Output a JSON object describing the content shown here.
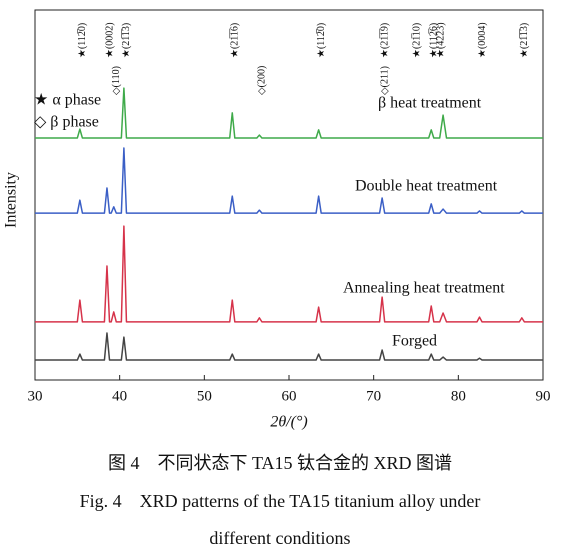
{
  "chart_data": {
    "type": "line",
    "y_label": "Intensity",
    "x_label": "2θ/(°)",
    "legend": [
      "★ α phase",
      "◇ β phase"
    ],
    "caption_cn": "图 4　不同状态下 TA15 钛合金的 XRD 图谱",
    "caption_en": [
      "Fig. 4　XRD patterns of the TA15 titanium alloy under",
      "different conditions"
    ],
    "xlim": [
      30,
      90
    ],
    "xticks": [
      30,
      40,
      50,
      60,
      70,
      80,
      90
    ],
    "ylim": [
      0,
      100
    ],
    "peak_labels": [
      {
        "text": "★(112̅0)",
        "x": 35.3
      },
      {
        "text": "★(0002)",
        "x": 38.5
      },
      {
        "text": "◇(110)",
        "x": 39.3
      },
      {
        "text": "★(21̅1̅3)",
        "x": 40.5
      },
      {
        "text": "★(21̅1̅6)",
        "x": 53.3
      },
      {
        "text": "◇(200)",
        "x": 56.5
      },
      {
        "text": "★(112̅0)",
        "x": 63.5
      },
      {
        "text": "◇(211)",
        "x": 71.0
      },
      {
        "text": "★(21̅1̅9)",
        "x": 71.0
      },
      {
        "text": "★(21̅10)",
        "x": 74.8
      },
      {
        "text": "★(112̅6)",
        "x": 76.8
      },
      {
        "text": "★(4223)",
        "x": 77.6
      },
      {
        "text": "★(0004)",
        "x": 82.5
      },
      {
        "text": "★(21̅1̅3)",
        "x": 87.5
      }
    ],
    "x": [
      30,
      35.0,
      35.3,
      35.6,
      38.2,
      38.5,
      38.8,
      39.0,
      39.3,
      39.6,
      40.2,
      40.5,
      40.8,
      53.0,
      53.3,
      53.6,
      56.2,
      56.5,
      56.8,
      63.2,
      63.5,
      63.8,
      70.7,
      71.0,
      71.3,
      76.5,
      76.8,
      77.1,
      77.8,
      78.2,
      78.6,
      82.2,
      82.5,
      82.8,
      87.2,
      87.5,
      87.8,
      90
    ],
    "series": [
      {
        "name": "β heat treatment",
        "color": "#3faa4a",
        "values": [
          65.4,
          65.4,
          67.8,
          65.4,
          65.4,
          65.4,
          65.4,
          65.4,
          65.4,
          65.4,
          65.4,
          78.9,
          65.4,
          65.4,
          72.2,
          65.4,
          65.4,
          66.2,
          65.4,
          65.4,
          67.6,
          65.4,
          65.4,
          65.4,
          65.4,
          65.4,
          67.6,
          65.4,
          65.4,
          71.6,
          65.4,
          65.4,
          65.4,
          65.4,
          65.4,
          65.4,
          65.4,
          65.4
        ]
      },
      {
        "name": "Double heat treatment",
        "color": "#3b5fc6",
        "values": [
          45.1,
          45.1,
          48.6,
          45.1,
          45.1,
          51.9,
          45.1,
          45.1,
          46.8,
          45.1,
          45.1,
          62.7,
          45.1,
          45.1,
          49.7,
          45.1,
          45.1,
          45.9,
          45.1,
          45.1,
          49.7,
          45.1,
          45.1,
          49.2,
          45.1,
          45.1,
          47.6,
          45.1,
          45.1,
          46.2,
          45.1,
          45.1,
          45.7,
          45.1,
          45.1,
          45.7,
          45.1,
          45.1
        ]
      },
      {
        "name": "Annealing heat treatment",
        "color": "#d6334a",
        "values": [
          15.7,
          15.7,
          21.6,
          15.7,
          15.7,
          30.8,
          15.7,
          15.7,
          18.4,
          15.7,
          15.7,
          41.6,
          15.7,
          15.7,
          21.6,
          15.7,
          15.7,
          16.8,
          15.7,
          15.7,
          19.7,
          15.7,
          15.7,
          22.4,
          15.7,
          15.7,
          20.0,
          15.7,
          15.7,
          18.1,
          15.7,
          15.7,
          17.0,
          15.7,
          15.7,
          16.8,
          15.7,
          15.7
        ]
      },
      {
        "name": "Forged",
        "color": "#444444",
        "values": [
          5.4,
          5.4,
          7.0,
          5.4,
          5.4,
          12.7,
          5.4,
          5.4,
          5.4,
          5.4,
          5.4,
          11.6,
          5.4,
          5.4,
          7.0,
          5.4,
          5.4,
          5.4,
          5.4,
          5.4,
          7.0,
          5.4,
          5.4,
          8.1,
          5.4,
          5.4,
          7.0,
          5.4,
          5.4,
          6.2,
          5.4,
          5.4,
          5.9,
          5.4,
          5.4,
          5.4,
          5.4,
          5.4
        ]
      }
    ]
  }
}
